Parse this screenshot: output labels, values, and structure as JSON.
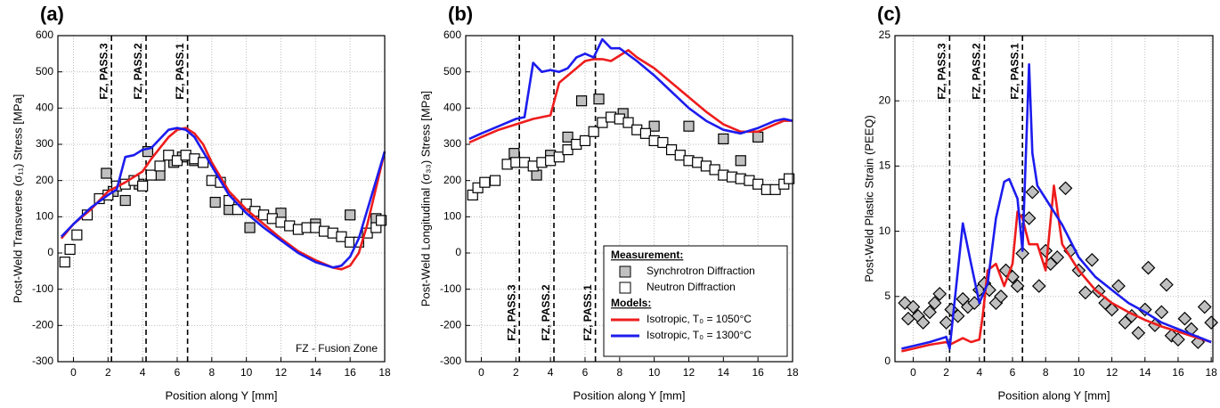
{
  "chart_data": [
    {
      "type": "line",
      "title": "(a)",
      "x_label": "Position along Y [mm]",
      "y_label": "Post-Weld Transverse (σ₁₁) Stress [MPa]",
      "xlim": [
        -0.9,
        18
      ],
      "xticks": [
        0,
        2,
        4,
        6,
        8,
        10,
        12,
        14,
        16,
        18
      ],
      "ylim": [
        -300,
        600
      ],
      "yticks": [
        -300,
        -200,
        -100,
        0,
        100,
        200,
        300,
        400,
        500,
        600
      ],
      "grid": true,
      "vline_label_pos": "top",
      "vlines": [
        {
          "x": 2.2,
          "label": "FZ, PASS.3"
        },
        {
          "x": 4.2,
          "label": "FZ, PASS.2"
        },
        {
          "x": 6.6,
          "label": "FZ, PASS.1"
        }
      ],
      "annotation": "FZ - Fusion Zone",
      "series": [
        {
          "marker": "square",
          "color": "#c0c0c0",
          "x": [
            1.9,
            2.3,
            3,
            3.8,
            4.3,
            5,
            5.8,
            6.3,
            7,
            8.2,
            9,
            10.2,
            12,
            14,
            16,
            17.5
          ],
          "values": [
            220,
            170,
            145,
            190,
            280,
            215,
            250,
            265,
            255,
            140,
            120,
            70,
            110,
            80,
            105,
            95
          ]
        },
        {
          "marker": "square",
          "color": "#ffffff",
          "x": [
            -0.5,
            -0.2,
            0.2,
            0.8,
            1.5,
            2,
            2.5,
            3,
            3.5,
            4,
            4.5,
            5,
            5.5,
            6,
            6.5,
            7,
            7.5,
            8,
            8.5,
            9,
            9.5,
            10,
            10.5,
            11,
            11.5,
            12,
            12.5,
            13,
            13.5,
            14,
            14.5,
            15,
            15.5,
            16,
            16.5,
            17,
            17.5,
            17.8
          ],
          "values": [
            -25,
            10,
            50,
            105,
            150,
            160,
            185,
            190,
            200,
            185,
            215,
            240,
            270,
            255,
            270,
            260,
            250,
            200,
            195,
            145,
            120,
            135,
            115,
            105,
            95,
            85,
            75,
            65,
            70,
            70,
            60,
            55,
            45,
            30,
            30,
            55,
            70,
            90
          ]
        },
        {
          "color": "#ee1c1c",
          "x": [
            -0.7,
            0,
            1,
            2,
            3,
            4,
            4.5,
            5,
            5.5,
            6,
            6.5,
            7,
            7.5,
            8,
            9,
            10,
            11,
            12,
            13,
            14,
            15,
            15.5,
            16,
            16.5,
            17,
            17.5,
            18
          ],
          "values": [
            40,
            80,
            120,
            170,
            195,
            225,
            260,
            290,
            320,
            340,
            345,
            330,
            300,
            250,
            170,
            120,
            80,
            40,
            5,
            -20,
            -40,
            -45,
            -35,
            0,
            80,
            180,
            280
          ]
        },
        {
          "color": "#1c1cee",
          "x": [
            -0.7,
            0,
            1,
            2,
            2.5,
            3,
            3.5,
            4,
            4.5,
            5,
            5.5,
            6,
            6.5,
            7,
            8,
            9,
            10,
            11,
            12,
            13,
            14,
            15,
            15.5,
            16,
            16.5,
            17,
            17.5,
            18
          ],
          "values": [
            45,
            80,
            125,
            160,
            175,
            265,
            270,
            285,
            290,
            315,
            340,
            345,
            340,
            320,
            240,
            160,
            110,
            70,
            35,
            0,
            -25,
            -40,
            -35,
            -10,
            40,
            120,
            200,
            280
          ]
        }
      ]
    },
    {
      "type": "line",
      "title": "(b)",
      "x_label": "Position along Y [mm]",
      "y_label": "Post-Weld Longitudinal (σ₃₃) Stress [MPa]",
      "xlim": [
        -0.9,
        18
      ],
      "xticks": [
        0,
        2,
        4,
        6,
        8,
        10,
        12,
        14,
        16,
        18
      ],
      "ylim": [
        -300,
        600
      ],
      "yticks": [
        -300,
        -200,
        -100,
        0,
        100,
        200,
        300,
        400,
        500,
        600
      ],
      "grid": true,
      "vline_label_pos": "bottom",
      "vlines": [
        {
          "x": 2.2,
          "label": "FZ, PASS.3"
        },
        {
          "x": 4.2,
          "label": "FZ, PASS.2"
        },
        {
          "x": 6.6,
          "label": "FZ, PASS.1"
        }
      ],
      "legend": "lower right",
      "legend_headings": [
        "Measurement:",
        "Models:"
      ],
      "series": [
        {
          "name": "Synchrotron Diffraction",
          "marker": "square",
          "color": "#c0c0c0",
          "x": [
            1.9,
            3.2,
            4,
            5,
            5.8,
            6.8,
            8.2,
            10,
            12,
            14,
            15,
            16
          ],
          "values": [
            275,
            215,
            270,
            320,
            420,
            425,
            385,
            350,
            350,
            315,
            255,
            320
          ]
        },
        {
          "name": "Neutron Diffraction",
          "marker": "square",
          "color": "#ffffff",
          "x": [
            -0.5,
            -0.2,
            0.2,
            0.8,
            1.5,
            2,
            2.5,
            3,
            3.5,
            4,
            4.5,
            5,
            5.5,
            6,
            6.5,
            7,
            7.5,
            8,
            8.5,
            9,
            9.5,
            10,
            10.5,
            11,
            11.5,
            12,
            12.5,
            13,
            13.5,
            14,
            14.5,
            15,
            15.5,
            16,
            16.5,
            17,
            17.5,
            17.8
          ],
          "values": [
            160,
            180,
            195,
            200,
            245,
            250,
            250,
            240,
            250,
            255,
            265,
            285,
            300,
            310,
            335,
            360,
            375,
            370,
            360,
            340,
            330,
            310,
            305,
            285,
            270,
            255,
            250,
            240,
            230,
            215,
            210,
            205,
            200,
            190,
            175,
            175,
            190,
            205
          ]
        },
        {
          "name": "Isotropic, T₀ = 1050°C",
          "color": "#ee1c1c",
          "x": [
            -0.7,
            0,
            1,
            2,
            3,
            4,
            4.5,
            5,
            5.5,
            6,
            6.5,
            7,
            7.5,
            8,
            8.5,
            9,
            10,
            11,
            12,
            13,
            14,
            15,
            16,
            17,
            17.5,
            18
          ],
          "values": [
            305,
            320,
            340,
            355,
            370,
            380,
            470,
            490,
            510,
            530,
            535,
            535,
            530,
            545,
            560,
            540,
            510,
            470,
            430,
            390,
            355,
            335,
            335,
            355,
            365,
            365
          ]
        },
        {
          "name": "Isotropic, T₀ = 1300°C",
          "color": "#1c1cee",
          "x": [
            -0.7,
            0,
            1,
            2,
            2.5,
            3,
            3.5,
            4,
            4.5,
            5,
            5.5,
            6,
            6.5,
            7,
            7.5,
            8,
            9,
            10,
            11,
            12,
            13,
            14,
            15,
            16,
            17,
            17.5,
            18
          ],
          "values": [
            315,
            330,
            350,
            370,
            375,
            525,
            500,
            505,
            500,
            510,
            540,
            550,
            540,
            590,
            565,
            565,
            530,
            490,
            445,
            400,
            365,
            340,
            330,
            345,
            365,
            370,
            365
          ]
        }
      ]
    },
    {
      "type": "line",
      "title": "(c)",
      "x_label": "Position along Y [mm]",
      "y_label": "Post-Weld Plastic Strain (PEEQ)",
      "xlim": [
        -1.1,
        18.1
      ],
      "xticks": [
        0,
        2,
        4,
        6,
        8,
        10,
        12,
        14,
        16,
        18
      ],
      "ylim": [
        0,
        25
      ],
      "yticks": [
        0,
        5,
        10,
        15,
        20,
        25
      ],
      "grid": true,
      "vline_label_pos": "top",
      "vlines": [
        {
          "x": 2.2,
          "label": "FZ, PASS.3"
        },
        {
          "x": 4.3,
          "label": "FZ, PASS.2"
        },
        {
          "x": 6.6,
          "label": "FZ, PASS.1"
        }
      ],
      "series": [
        {
          "marker": "diamond",
          "color": "#c0c0c0",
          "x": [
            -0.5,
            -0.3,
            0,
            0.3,
            0.6,
            1,
            1.3,
            1.6,
            2,
            2.3,
            2.7,
            3,
            3.3,
            3.7,
            4,
            4.3,
            4.6,
            5,
            5.3,
            5.6,
            6,
            6.3,
            6.6,
            7,
            7.2,
            7.6,
            8,
            8.3,
            8.7,
            9.2,
            9.5,
            10,
            10.4,
            10.8,
            11.2,
            11.6,
            12,
            12.4,
            12.8,
            13.2,
            13.6,
            14,
            14.2,
            14.6,
            15,
            15.3,
            15.6,
            16,
            16.4,
            16.8,
            17.2,
            17.6,
            18
          ],
          "values": [
            4.5,
            3.3,
            4.2,
            3.5,
            3,
            3.8,
            4.5,
            5.2,
            3,
            4,
            3.5,
            4.8,
            4.2,
            4.5,
            5.5,
            6,
            5.5,
            4.5,
            5,
            7,
            6.5,
            5.8,
            8.3,
            11,
            13,
            5.8,
            8.5,
            7.5,
            8,
            13.3,
            8.5,
            7,
            5.3,
            7.8,
            5.4,
            4.5,
            4,
            5.8,
            3,
            3.5,
            2.2,
            4,
            7.2,
            2.8,
            3.8,
            5.9,
            2,
            1.7,
            3.3,
            2.5,
            1.5,
            4.2,
            3
          ]
        },
        {
          "color": "#ee1c1c",
          "x": [
            -0.7,
            0,
            1,
            2,
            2.2,
            3,
            3.5,
            4,
            4.2,
            4.5,
            5,
            5.5,
            6,
            6.3,
            6.6,
            7,
            7.5,
            8,
            8.2,
            8.5,
            9,
            10,
            11,
            12,
            13,
            14,
            15,
            16,
            17,
            18
          ],
          "values": [
            0.8,
            1,
            1.3,
            1.5,
            1.3,
            1.8,
            1.5,
            1.7,
            3.5,
            7,
            7.5,
            5.8,
            7.5,
            11.5,
            11,
            9,
            9,
            7,
            9.5,
            13.5,
            9,
            7,
            5.5,
            4.5,
            3.8,
            3.2,
            2.7,
            2.3,
            1.9,
            1.5
          ]
        },
        {
          "color": "#1c1cee",
          "x": [
            -0.7,
            0,
            1,
            2,
            2.2,
            3,
            3.5,
            4,
            4.5,
            5,
            5.5,
            5.8,
            6.3,
            6.6,
            7,
            7.2,
            7.5,
            8,
            9,
            10,
            11,
            12,
            13,
            14,
            15,
            16,
            17,
            18
          ],
          "values": [
            1,
            1.2,
            1.5,
            1.9,
            1,
            10.6,
            7.5,
            4.5,
            6,
            11,
            13.8,
            14,
            12.5,
            8.5,
            22.8,
            16,
            13.5,
            12.5,
            10.5,
            8,
            6.5,
            5.5,
            4.5,
            3.8,
            3,
            2.5,
            2,
            1.5
          ]
        }
      ]
    }
  ]
}
